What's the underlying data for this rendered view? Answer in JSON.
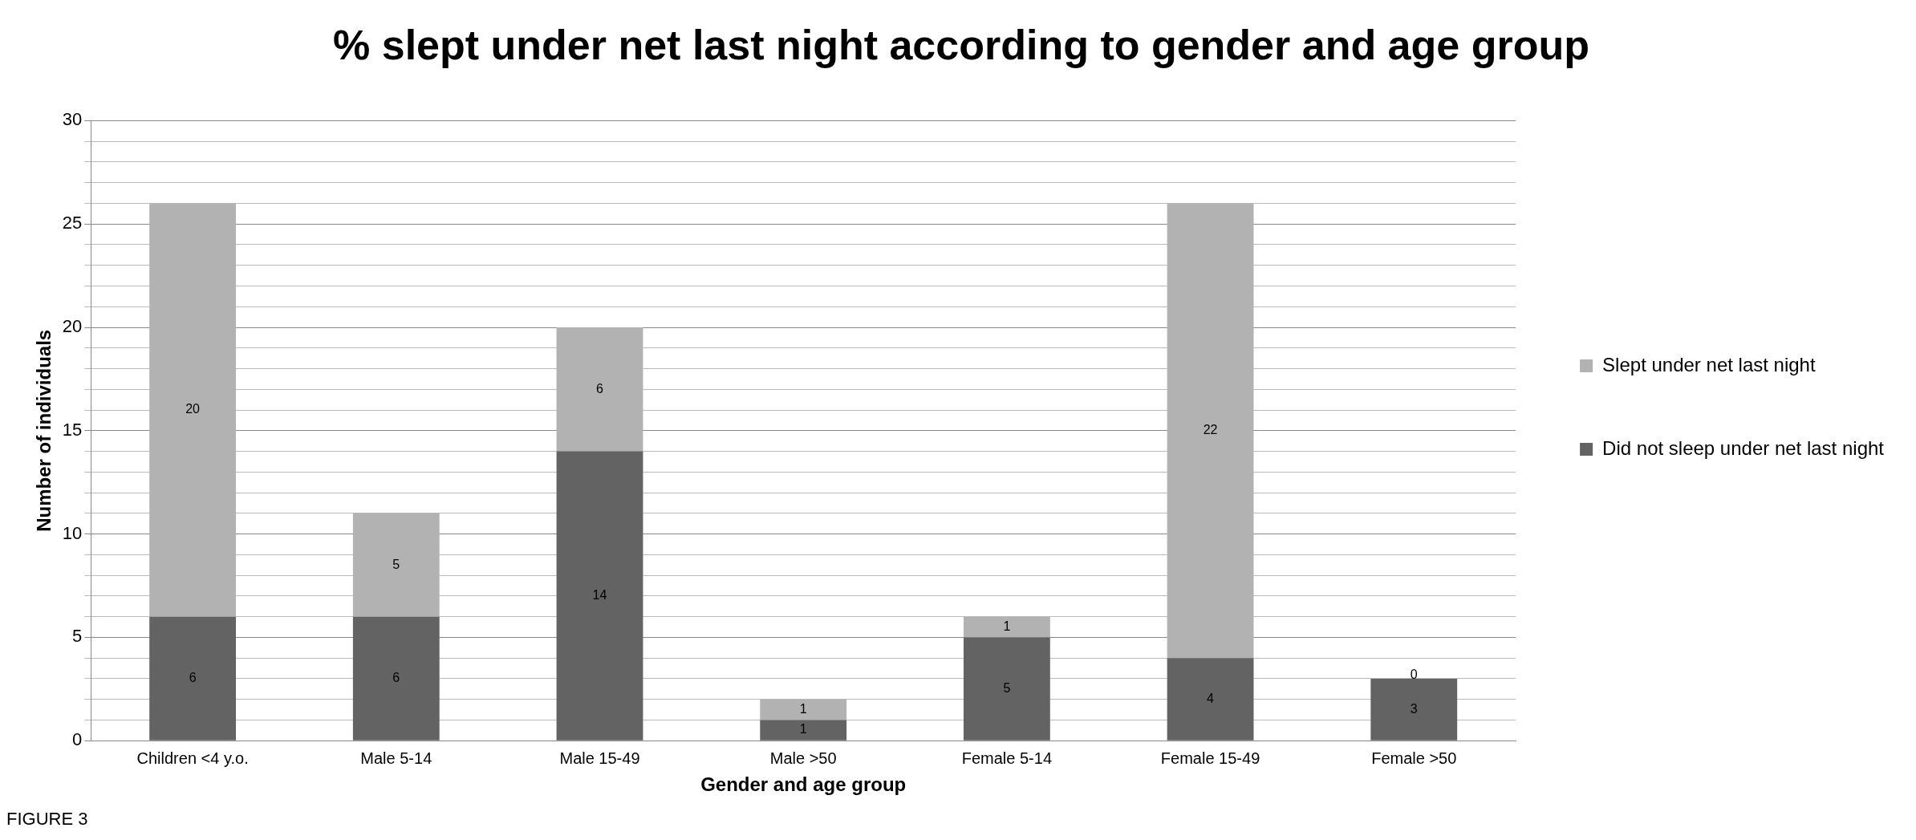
{
  "chart_data": {
    "type": "bar",
    "title": "% slept under net last night according to gender and age group",
    "xlabel": "Gender and age group",
    "ylabel": "Number of individuals",
    "categories": [
      "Children <4 y.o.",
      "Male 5-14",
      "Male 15-49",
      "Male >50",
      "Female 5-14",
      "Female 15-49",
      "Female >50"
    ],
    "series": [
      {
        "name": "Did not sleep under net last night",
        "color": "#636363",
        "values": [
          6,
          6,
          14,
          1,
          5,
          4,
          3
        ]
      },
      {
        "name": "Slept under net last night",
        "color": "#b2b2b2",
        "values": [
          20,
          5,
          6,
          1,
          1,
          22,
          0
        ]
      }
    ],
    "stacked": true,
    "data_labels": true,
    "legend": "right",
    "grid": "y",
    "ylim": [
      0,
      30
    ],
    "yticks": [
      0,
      {
        "value": 1,
        "label": null
      },
      {
        "value": 2,
        "label": null
      },
      {
        "value": 3,
        "label": null
      },
      {
        "value": 4,
        "label": null
      },
      5,
      {
        "value": 6,
        "label": null
      },
      {
        "value": 7,
        "label": null
      },
      {
        "value": 8,
        "label": null
      },
      {
        "value": 9,
        "label": null
      },
      10,
      {
        "value": 11,
        "label": null
      },
      {
        "value": 12,
        "label": null
      },
      {
        "value": 13,
        "label": null
      },
      {
        "value": 14,
        "label": null
      },
      15,
      {
        "value": 16,
        "label": null
      },
      {
        "value": 17,
        "label": null
      },
      {
        "value": 18,
        "label": null
      },
      {
        "value": 19,
        "label": null
      },
      20,
      {
        "value": 21,
        "label": null
      },
      {
        "value": 22,
        "label": null
      },
      {
        "value": 23,
        "label": null
      },
      {
        "value": 24,
        "label": null
      },
      25,
      {
        "value": 26,
        "label": null
      },
      {
        "value": 27,
        "label": null
      },
      {
        "value": 28,
        "label": null
      },
      {
        "value": 29,
        "label": null
      },
      30
    ],
    "annotations": [
      "FIGURE 3"
    ]
  }
}
